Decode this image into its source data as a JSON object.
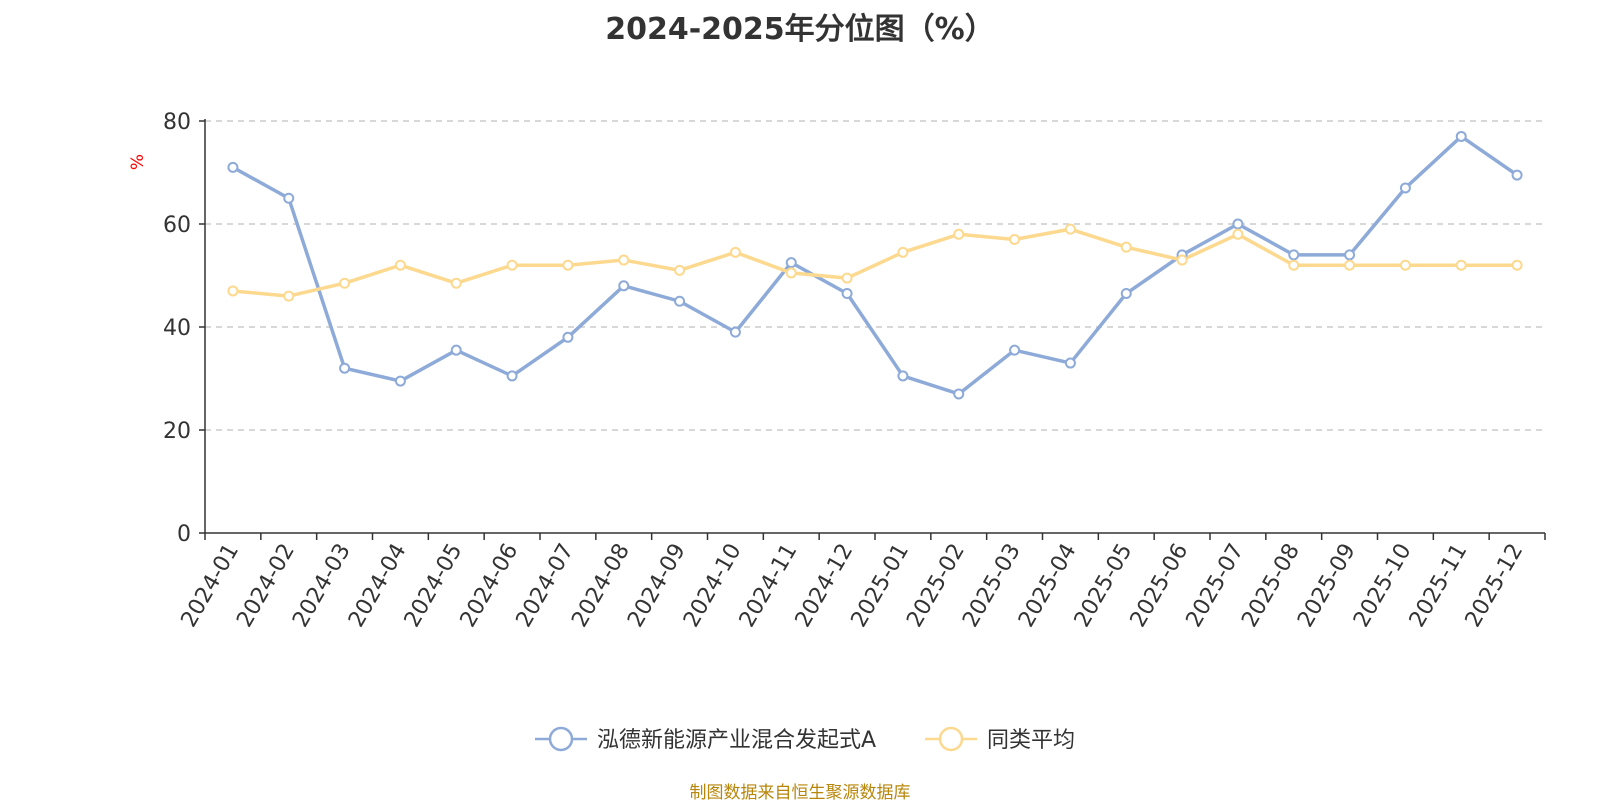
{
  "title": "2024-2025年分位图（%）",
  "source_note": "制图数据来自恒生聚源数据库",
  "colors": {
    "series_1": "#8eaad8",
    "series_2": "#fcd98f",
    "grid": "#cccccc",
    "axis": "#333333",
    "unit_label": "#ff0000"
  },
  "chart_data": {
    "type": "line",
    "ylabel": "%",
    "ylim": [
      0,
      80
    ],
    "yticks": [
      0,
      20,
      40,
      60,
      80
    ],
    "grid": true,
    "legend_position": "bottom",
    "categories": [
      "2024-01",
      "2024-02",
      "2024-03",
      "2024-04",
      "2024-05",
      "2024-06",
      "2024-07",
      "2024-08",
      "2024-09",
      "2024-10",
      "2024-11",
      "2024-12",
      "2025-01",
      "2025-02",
      "2025-03",
      "2025-04",
      "2025-05",
      "2025-06",
      "2025-07",
      "2025-08",
      "2025-09",
      "2025-10",
      "2025-11",
      "2025-12"
    ],
    "series": [
      {
        "name": "泓德新能源产业混合发起式A",
        "values": [
          71,
          65,
          32,
          29.5,
          35.5,
          30.5,
          38,
          48,
          45,
          39,
          52.5,
          46.5,
          30.5,
          27,
          35.5,
          33,
          46.5,
          54,
          60,
          54,
          54,
          67,
          77,
          69.5
        ]
      },
      {
        "name": "同类平均",
        "values": [
          47,
          46,
          48.5,
          52,
          48.5,
          52,
          52,
          53,
          51,
          54.5,
          50.5,
          49.5,
          54.5,
          58,
          57,
          59,
          55.5,
          53,
          58,
          52,
          52,
          52,
          52,
          52
        ]
      }
    ]
  }
}
